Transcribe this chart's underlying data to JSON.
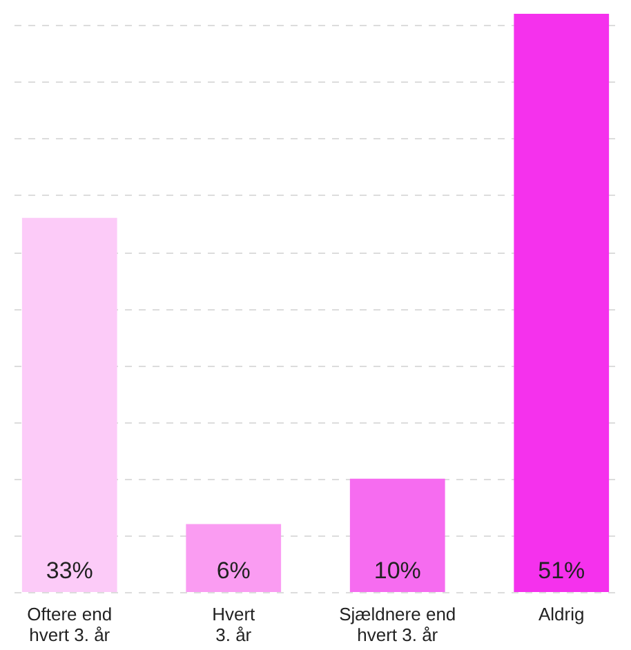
{
  "chart_data": {
    "type": "bar",
    "categories": [
      "Oftere end\nhvert 3. år",
      "Hvert\n3. år",
      "Sjældnere end\nhvert 3. år",
      "Aldrig"
    ],
    "values": [
      33,
      6,
      10,
      51
    ],
    "colors": [
      "#fccbf8",
      "#fa9cf2",
      "#f66cf0",
      "#f531ed"
    ],
    "value_labels": [
      "33%",
      "6%",
      "10%",
      "51%"
    ],
    "ylim": [
      0,
      51
    ],
    "yticks": [
      {
        "value": 0,
        "label": null
      },
      {
        "value": 5,
        "label": null
      },
      {
        "value": 10,
        "label": null
      },
      {
        "value": 15,
        "label": null
      },
      {
        "value": 20,
        "label": null
      },
      {
        "value": 25,
        "label": null
      },
      {
        "value": 30,
        "label": null
      },
      {
        "value": 35,
        "label": null
      },
      {
        "value": 40,
        "label": null
      },
      {
        "value": 45,
        "label": null
      },
      {
        "value": 50,
        "label": null
      }
    ],
    "grid": "y",
    "tick_labels": "x"
  }
}
